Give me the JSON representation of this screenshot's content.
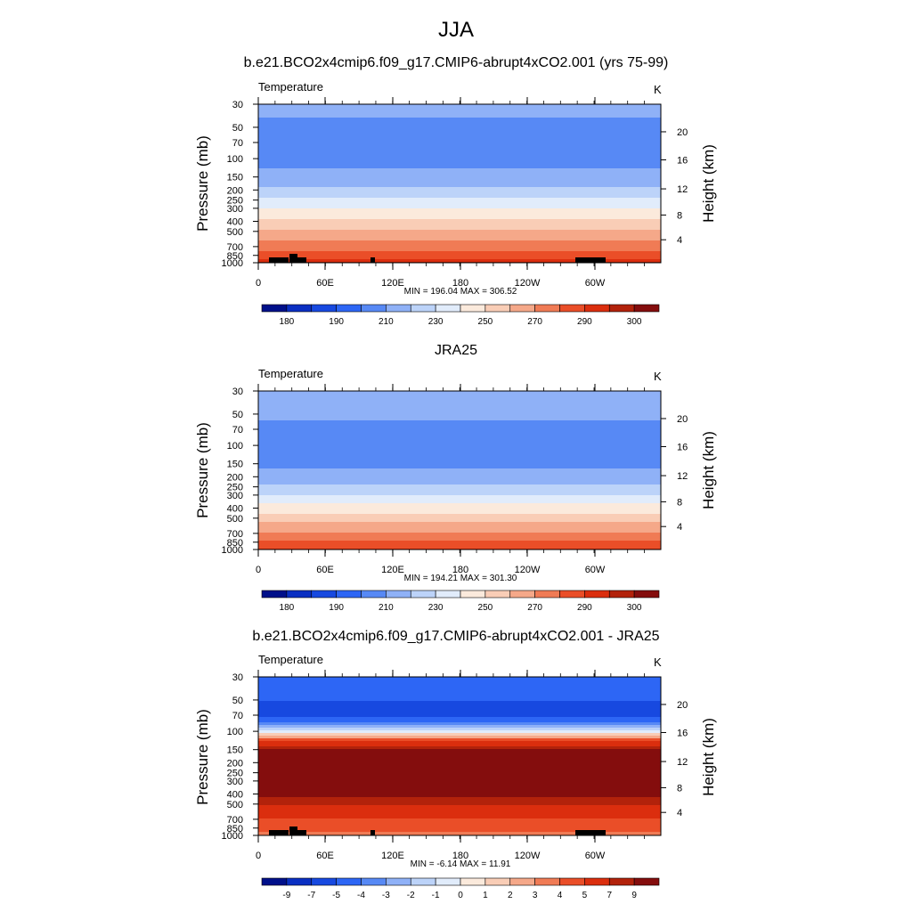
{
  "figure": {
    "title": "JJA"
  },
  "colors": {
    "abs_palette": [
      "#00108a",
      "#0a2fc2",
      "#1749e0",
      "#2d66f5",
      "#5789f5",
      "#8fb1f7",
      "#bcd3f9",
      "#e1ecfb",
      "#fbeadc",
      "#f9cdb6",
      "#f5a889",
      "#f07b55",
      "#ea4e28",
      "#db2e0e",
      "#b2220b",
      "#840d0d"
    ],
    "diff_palette": [
      "#00108a",
      "#0a2fc2",
      "#1749e0",
      "#2d66f5",
      "#5789f5",
      "#8fb1f7",
      "#bcd3f9",
      "#e1ecfb",
      "#fbeadc",
      "#f9cdb6",
      "#f5a889",
      "#f07b55",
      "#ea4e28",
      "#db2e0e",
      "#b2220b",
      "#840d0d"
    ],
    "land": "#000000"
  },
  "panels": [
    {
      "title": "b.e21.BCO2x4cmip6.f09_g17.CMIP6-abrupt4xCO2.001 (yrs 75-99)",
      "variable": "Temperature",
      "units": "K",
      "minmax": "MIN = 196.04  MAX = 306.52",
      "ylabel_left": "Pressure (mb)",
      "ylabel_right": "Height (km)",
      "x_ticks": [
        "0",
        "60E",
        "120E",
        "180",
        "120W",
        "60W"
      ],
      "p_ticks": [
        "30",
        "50",
        "70",
        "100",
        "150",
        "200",
        "250",
        "300",
        "400",
        "500",
        "700",
        "850",
        "1000"
      ],
      "h_ticks": [
        "20",
        "16",
        "12",
        "8",
        "4"
      ],
      "colorbar_labels": [
        "180",
        "190",
        "210",
        "230",
        "250",
        "270",
        "290",
        "300"
      ]
    },
    {
      "title": "JRA25",
      "variable": "Temperature",
      "units": "K",
      "minmax": "MIN = 194.21  MAX = 301.30",
      "ylabel_left": "Pressure (mb)",
      "ylabel_right": "Height (km)",
      "x_ticks": [
        "0",
        "60E",
        "120E",
        "180",
        "120W",
        "60W"
      ],
      "p_ticks": [
        "30",
        "50",
        "70",
        "100",
        "150",
        "200",
        "250",
        "300",
        "400",
        "500",
        "700",
        "850",
        "1000"
      ],
      "h_ticks": [
        "20",
        "16",
        "12",
        "8",
        "4"
      ],
      "colorbar_labels": [
        "180",
        "190",
        "210",
        "230",
        "250",
        "270",
        "290",
        "300"
      ]
    },
    {
      "title": "b.e21.BCO2x4cmip6.f09_g17.CMIP6-abrupt4xCO2.001 - JRA25",
      "variable": "Temperature",
      "units": "K",
      "minmax": "MIN = -6.14  MAX = 11.91",
      "ylabel_left": "Pressure (mb)",
      "ylabel_right": "Height (km)",
      "x_ticks": [
        "0",
        "60E",
        "120E",
        "180",
        "120W",
        "60W"
      ],
      "p_ticks": [
        "30",
        "50",
        "70",
        "100",
        "150",
        "200",
        "250",
        "300",
        "400",
        "500",
        "700",
        "850",
        "1000"
      ],
      "h_ticks": [
        "20",
        "16",
        "12",
        "8",
        "4"
      ],
      "colorbar_labels": [
        "-9",
        "-7",
        "-5",
        "-4",
        "-3",
        "-2",
        "-1",
        "0",
        "1",
        "2",
        "3",
        "4",
        "5",
        "7",
        "9"
      ]
    }
  ],
  "chart_data": [
    {
      "type": "heatmap",
      "title": "b.e21.BCO2x4cmip6.f09_g17.CMIP6-abrupt4xCO2.001 (yrs 75-99)",
      "xlabel": "",
      "ylabel": "Pressure (mb)",
      "ylabel_right": "Height (km)",
      "x_ticks": [
        "0",
        "60E",
        "120E",
        "180",
        "120W",
        "60W"
      ],
      "x_range": [
        0,
        360
      ],
      "y_ticks": [
        30,
        50,
        70,
        100,
        150,
        200,
        250,
        300,
        400,
        500,
        700,
        850,
        1000
      ],
      "y_range": [
        30,
        1000
      ],
      "y_scale": "log",
      "levels": [
        180,
        185,
        190,
        200,
        210,
        220,
        230,
        240,
        250,
        260,
        270,
        280,
        290,
        295,
        300
      ],
      "profile_p": [
        30,
        50,
        70,
        100,
        150,
        200,
        250,
        300,
        400,
        500,
        700,
        850,
        1000
      ],
      "profile_value": [
        214,
        207,
        205,
        206,
        213,
        222,
        231,
        239,
        252,
        262,
        276,
        285,
        295
      ],
      "min": 196.04,
      "max": 306.52,
      "units": "K"
    },
    {
      "type": "heatmap",
      "title": "JRA25",
      "xlabel": "",
      "ylabel": "Pressure (mb)",
      "ylabel_right": "Height (km)",
      "x_ticks": [
        "0",
        "60E",
        "120E",
        "180",
        "120W",
        "60W"
      ],
      "x_range": [
        0,
        360
      ],
      "y_ticks": [
        30,
        50,
        70,
        100,
        150,
        200,
        250,
        300,
        400,
        500,
        700,
        850,
        1000
      ],
      "y_range": [
        30,
        1000
      ],
      "y_scale": "log",
      "levels": [
        180,
        185,
        190,
        200,
        210,
        220,
        230,
        240,
        250,
        260,
        270,
        280,
        290,
        295,
        300
      ],
      "profile_p": [
        30,
        50,
        70,
        100,
        150,
        200,
        250,
        300,
        400,
        500,
        700,
        850,
        1000
      ],
      "profile_value": [
        218,
        212,
        207,
        204,
        207,
        214,
        222,
        230,
        245,
        256,
        272,
        282,
        292
      ],
      "min": 194.21,
      "max": 301.3,
      "units": "K"
    },
    {
      "type": "heatmap",
      "title": "b.e21.BCO2x4cmip6.f09_g17.CMIP6-abrupt4xCO2.001 - JRA25",
      "xlabel": "",
      "ylabel": "Pressure (mb)",
      "ylabel_right": "Height (km)",
      "x_ticks": [
        "0",
        "60E",
        "120E",
        "180",
        "120W",
        "60W"
      ],
      "x_range": [
        0,
        360
      ],
      "y_ticks": [
        30,
        50,
        70,
        100,
        150,
        200,
        250,
        300,
        400,
        500,
        700,
        850,
        1000
      ],
      "y_range": [
        30,
        1000
      ],
      "y_scale": "log",
      "levels": [
        -9,
        -7,
        -5,
        -4,
        -3,
        -2,
        -1,
        0,
        1,
        2,
        3,
        4,
        5,
        7,
        9
      ],
      "profile_p": [
        30,
        50,
        70,
        100,
        150,
        200,
        250,
        300,
        400,
        500,
        700,
        850,
        1000
      ],
      "profile_value": [
        -4,
        -5,
        -6,
        -0.5,
        9.5,
        10,
        10,
        10,
        9.5,
        7,
        5,
        4.5,
        3.5
      ],
      "min": -6.14,
      "max": 11.91,
      "units": "K"
    }
  ]
}
